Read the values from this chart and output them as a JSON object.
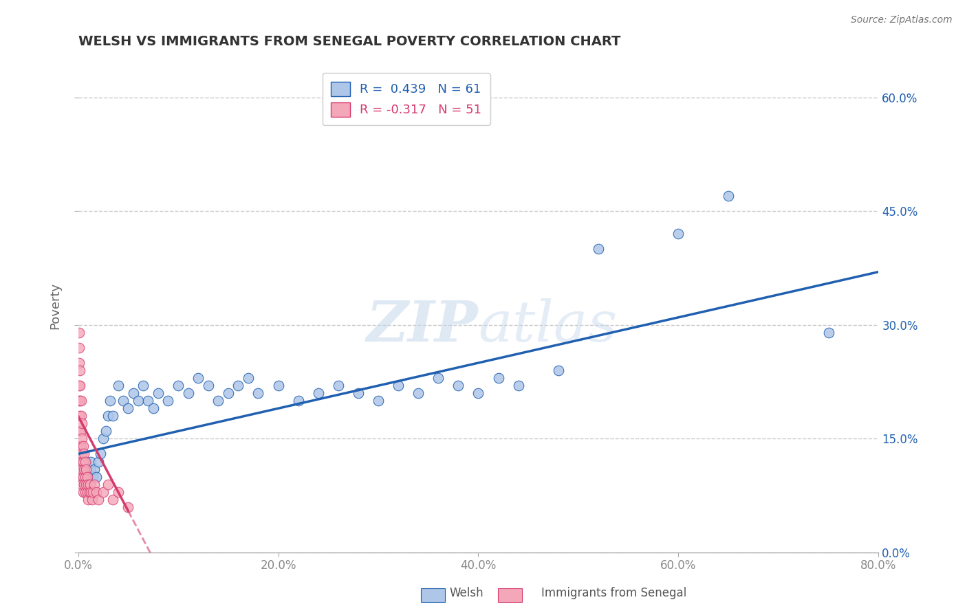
{
  "title": "WELSH VS IMMIGRANTS FROM SENEGAL POVERTY CORRELATION CHART",
  "source": "Source: ZipAtlas.com",
  "ylabel": "Poverty",
  "xmin": 0.0,
  "xmax": 0.8,
  "ymin": 0.0,
  "ymax": 0.65,
  "yticks": [
    0.0,
    0.15,
    0.3,
    0.45,
    0.6
  ],
  "xticks": [
    0.0,
    0.2,
    0.4,
    0.6,
    0.8
  ],
  "welsh_color": "#aec6e8",
  "senegal_color": "#f4a7b9",
  "welsh_line_color": "#2060b0",
  "senegal_line_color": "#d63b6e",
  "R_welsh": 0.439,
  "N_welsh": 61,
  "R_senegal": -0.317,
  "N_senegal": 51,
  "welsh_x": [
    0.001,
    0.002,
    0.003,
    0.003,
    0.004,
    0.005,
    0.006,
    0.007,
    0.008,
    0.009,
    0.01,
    0.011,
    0.012,
    0.013,
    0.015,
    0.016,
    0.018,
    0.02,
    0.022,
    0.025,
    0.028,
    0.03,
    0.032,
    0.035,
    0.04,
    0.045,
    0.05,
    0.055,
    0.06,
    0.065,
    0.07,
    0.075,
    0.08,
    0.09,
    0.1,
    0.11,
    0.12,
    0.13,
    0.14,
    0.15,
    0.16,
    0.17,
    0.18,
    0.2,
    0.22,
    0.24,
    0.26,
    0.28,
    0.3,
    0.32,
    0.34,
    0.36,
    0.38,
    0.4,
    0.42,
    0.44,
    0.48,
    0.52,
    0.6,
    0.65,
    0.75
  ],
  "welsh_y": [
    0.11,
    0.1,
    0.1,
    0.12,
    0.11,
    0.12,
    0.1,
    0.11,
    0.12,
    0.11,
    0.1,
    0.1,
    0.11,
    0.12,
    0.1,
    0.11,
    0.1,
    0.12,
    0.13,
    0.15,
    0.16,
    0.18,
    0.2,
    0.18,
    0.22,
    0.2,
    0.19,
    0.21,
    0.2,
    0.22,
    0.2,
    0.19,
    0.21,
    0.2,
    0.22,
    0.21,
    0.23,
    0.22,
    0.2,
    0.21,
    0.22,
    0.23,
    0.21,
    0.22,
    0.2,
    0.21,
    0.22,
    0.21,
    0.2,
    0.22,
    0.21,
    0.23,
    0.22,
    0.21,
    0.23,
    0.22,
    0.24,
    0.4,
    0.42,
    0.47,
    0.29
  ],
  "senegal_x": [
    0.001,
    0.001,
    0.001,
    0.001,
    0.001,
    0.002,
    0.002,
    0.002,
    0.002,
    0.002,
    0.002,
    0.003,
    0.003,
    0.003,
    0.003,
    0.003,
    0.003,
    0.004,
    0.004,
    0.004,
    0.004,
    0.004,
    0.005,
    0.005,
    0.005,
    0.005,
    0.006,
    0.006,
    0.006,
    0.007,
    0.007,
    0.007,
    0.008,
    0.008,
    0.009,
    0.009,
    0.01,
    0.01,
    0.011,
    0.012,
    0.013,
    0.014,
    0.015,
    0.016,
    0.018,
    0.02,
    0.025,
    0.03,
    0.035,
    0.04,
    0.05
  ],
  "senegal_y": [
    0.29,
    0.27,
    0.25,
    0.22,
    0.2,
    0.24,
    0.22,
    0.2,
    0.18,
    0.16,
    0.14,
    0.2,
    0.18,
    0.16,
    0.14,
    0.12,
    0.1,
    0.17,
    0.15,
    0.13,
    0.11,
    0.09,
    0.14,
    0.12,
    0.1,
    0.08,
    0.13,
    0.11,
    0.09,
    0.12,
    0.1,
    0.08,
    0.11,
    0.09,
    0.1,
    0.08,
    0.09,
    0.07,
    0.08,
    0.09,
    0.08,
    0.07,
    0.08,
    0.09,
    0.08,
    0.07,
    0.08,
    0.09,
    0.07,
    0.08,
    0.06
  ],
  "watermark_zip": "ZIP",
  "watermark_atlas": "atlas",
  "background_color": "#ffffff",
  "grid_color": "#c8c8c8",
  "tick_color": "#888888",
  "legend_label_welsh": "Welsh",
  "legend_label_senegal": "Immigrants from Senegal"
}
